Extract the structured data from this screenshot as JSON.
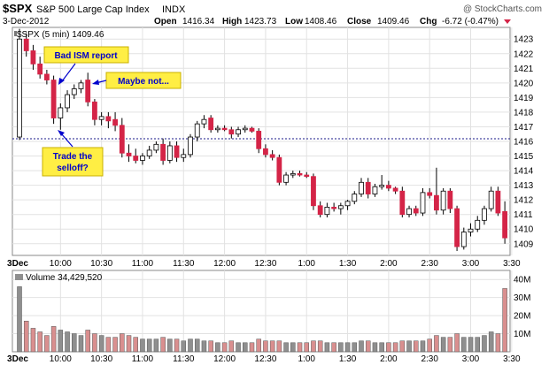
{
  "header": {
    "symbol": "$SPX",
    "name": "S&P 500 Large Cap Index",
    "exchange": "INDX",
    "date": "3-Dec-2012",
    "open_label": "Open",
    "open": "1416.34",
    "high_label": "High",
    "high": "1423.73",
    "low_label": "Low",
    "low": "1408.46",
    "close_label": "Close",
    "close": "1409.46",
    "chg_label": "Chg",
    "chg": "-6.72 (-0.47%)",
    "watermark": "@ StockCharts.com"
  },
  "price_legend": "$SPX (5 min) 1409.46",
  "volume_legend": "Volume 34,429,520",
  "colors": {
    "up": "#ffffff",
    "down": "#d42447",
    "wick": "#000000",
    "annotation_bg": "#ffee44",
    "annotation_text": "#0000cc",
    "volume_up": "#8f8f8f",
    "volume_down": "#d98f8f",
    "ref_line": "#1a1a88"
  },
  "annotations": [
    {
      "lines": [
        "Bad ISM report"
      ]
    },
    {
      "lines": [
        "Maybe not..."
      ]
    },
    {
      "lines": [
        "Trade the",
        "selloff?"
      ]
    }
  ],
  "chart_data": {
    "type": "candlestick",
    "interval": "5 min",
    "previous_close": 1416.18,
    "price_ticks": [
      1409,
      1410,
      1411,
      1412,
      1413,
      1414,
      1415,
      1416,
      1417,
      1418,
      1419,
      1420,
      1421,
      1422,
      1423
    ],
    "ylim": [
      1408.2,
      1423.8
    ],
    "time_labels": [
      "3Dec",
      "10:00",
      "10:30",
      "11:00",
      "11:30",
      "12:00",
      "12:30",
      "1:00",
      "1:30",
      "2:00",
      "2:30",
      "3:00",
      "3:30"
    ],
    "volume_ticks": [
      "10M",
      "20M",
      "30M",
      "40M"
    ],
    "volume_ylim": [
      0,
      45
    ],
    "candles": [
      {
        "o": 1416.3,
        "h": 1423.7,
        "l": 1416.1,
        "c": 1423.0
      },
      {
        "o": 1423.0,
        "h": 1423.4,
        "l": 1421.8,
        "c": 1422.2
      },
      {
        "o": 1422.2,
        "h": 1422.6,
        "l": 1420.9,
        "c": 1421.3
      },
      {
        "o": 1421.3,
        "h": 1421.8,
        "l": 1420.3,
        "c": 1420.6
      },
      {
        "o": 1420.6,
        "h": 1420.9,
        "l": 1419.9,
        "c": 1420.2
      },
      {
        "o": 1420.2,
        "h": 1420.5,
        "l": 1417.2,
        "c": 1417.6
      },
      {
        "o": 1417.6,
        "h": 1418.6,
        "l": 1416.8,
        "c": 1418.3
      },
      {
        "o": 1418.3,
        "h": 1419.5,
        "l": 1418.0,
        "c": 1419.2
      },
      {
        "o": 1419.2,
        "h": 1419.9,
        "l": 1418.9,
        "c": 1419.6
      },
      {
        "o": 1419.6,
        "h": 1420.2,
        "l": 1419.3,
        "c": 1420.0
      },
      {
        "o": 1420.2,
        "h": 1420.7,
        "l": 1418.4,
        "c": 1418.7
      },
      {
        "o": 1418.7,
        "h": 1418.9,
        "l": 1417.1,
        "c": 1417.5
      },
      {
        "o": 1417.5,
        "h": 1418.0,
        "l": 1417.1,
        "c": 1417.7
      },
      {
        "o": 1417.7,
        "h": 1418.0,
        "l": 1416.9,
        "c": 1417.4
      },
      {
        "o": 1417.5,
        "h": 1418.0,
        "l": 1416.7,
        "c": 1417.1
      },
      {
        "o": 1417.1,
        "h": 1417.6,
        "l": 1414.9,
        "c": 1415.2
      },
      {
        "o": 1415.2,
        "h": 1415.8,
        "l": 1414.6,
        "c": 1415.0
      },
      {
        "o": 1415.0,
        "h": 1415.5,
        "l": 1414.5,
        "c": 1414.7
      },
      {
        "o": 1414.7,
        "h": 1415.2,
        "l": 1414.4,
        "c": 1415.0
      },
      {
        "o": 1415.0,
        "h": 1415.7,
        "l": 1414.8,
        "c": 1415.4
      },
      {
        "o": 1415.4,
        "h": 1416.0,
        "l": 1415.2,
        "c": 1415.8
      },
      {
        "o": 1415.8,
        "h": 1416.2,
        "l": 1414.4,
        "c": 1414.7
      },
      {
        "o": 1414.7,
        "h": 1416.0,
        "l": 1414.5,
        "c": 1415.7
      },
      {
        "o": 1415.7,
        "h": 1416.0,
        "l": 1414.6,
        "c": 1414.9
      },
      {
        "o": 1414.9,
        "h": 1415.5,
        "l": 1414.6,
        "c": 1415.1
      },
      {
        "o": 1415.1,
        "h": 1416.5,
        "l": 1414.9,
        "c": 1416.3
      },
      {
        "o": 1416.3,
        "h": 1417.4,
        "l": 1416.0,
        "c": 1417.2
      },
      {
        "o": 1417.2,
        "h": 1417.8,
        "l": 1416.9,
        "c": 1417.5
      },
      {
        "o": 1417.6,
        "h": 1417.8,
        "l": 1416.6,
        "c": 1416.8
      },
      {
        "o": 1416.8,
        "h": 1417.1,
        "l": 1416.6,
        "c": 1416.9
      },
      {
        "o": 1416.9,
        "h": 1417.1,
        "l": 1416.7,
        "c": 1416.8
      },
      {
        "o": 1416.8,
        "h": 1417.0,
        "l": 1416.2,
        "c": 1416.5
      },
      {
        "o": 1416.5,
        "h": 1417.0,
        "l": 1416.3,
        "c": 1416.8
      },
      {
        "o": 1416.8,
        "h": 1417.1,
        "l": 1416.6,
        "c": 1416.9
      },
      {
        "o": 1416.9,
        "h": 1417.0,
        "l": 1416.6,
        "c": 1416.7
      },
      {
        "o": 1416.7,
        "h": 1416.9,
        "l": 1415.2,
        "c": 1415.5
      },
      {
        "o": 1415.5,
        "h": 1415.8,
        "l": 1414.9,
        "c": 1415.1
      },
      {
        "o": 1415.1,
        "h": 1415.4,
        "l": 1414.7,
        "c": 1414.9
      },
      {
        "o": 1414.9,
        "h": 1415.1,
        "l": 1413.0,
        "c": 1413.2
      },
      {
        "o": 1413.2,
        "h": 1413.9,
        "l": 1413.0,
        "c": 1413.7
      },
      {
        "o": 1413.7,
        "h": 1414.0,
        "l": 1413.5,
        "c": 1413.8
      },
      {
        "o": 1413.8,
        "h": 1414.0,
        "l": 1413.6,
        "c": 1413.7
      },
      {
        "o": 1413.7,
        "h": 1413.9,
        "l": 1413.5,
        "c": 1413.6
      },
      {
        "o": 1413.6,
        "h": 1413.8,
        "l": 1411.3,
        "c": 1411.6
      },
      {
        "o": 1411.6,
        "h": 1411.9,
        "l": 1410.8,
        "c": 1411.0
      },
      {
        "o": 1411.0,
        "h": 1411.8,
        "l": 1410.8,
        "c": 1411.5
      },
      {
        "o": 1411.5,
        "h": 1411.8,
        "l": 1411.2,
        "c": 1411.4
      },
      {
        "o": 1411.4,
        "h": 1411.8,
        "l": 1411.0,
        "c": 1411.6
      },
      {
        "o": 1411.6,
        "h": 1412.0,
        "l": 1411.3,
        "c": 1411.9
      },
      {
        "o": 1411.9,
        "h": 1412.6,
        "l": 1411.7,
        "c": 1412.4
      },
      {
        "o": 1412.4,
        "h": 1413.5,
        "l": 1412.2,
        "c": 1413.2
      },
      {
        "o": 1413.2,
        "h": 1413.5,
        "l": 1412.1,
        "c": 1412.4
      },
      {
        "o": 1412.4,
        "h": 1413.1,
        "l": 1412.2,
        "c": 1412.9
      },
      {
        "o": 1412.9,
        "h": 1413.7,
        "l": 1412.7,
        "c": 1413.0
      },
      {
        "o": 1413.0,
        "h": 1413.3,
        "l": 1412.6,
        "c": 1412.8
      },
      {
        "o": 1412.8,
        "h": 1412.9,
        "l": 1412.4,
        "c": 1412.6
      },
      {
        "o": 1412.6,
        "h": 1412.9,
        "l": 1410.8,
        "c": 1411.0
      },
      {
        "o": 1411.0,
        "h": 1411.6,
        "l": 1410.8,
        "c": 1411.4
      },
      {
        "o": 1411.4,
        "h": 1411.6,
        "l": 1410.9,
        "c": 1411.1
      },
      {
        "o": 1411.1,
        "h": 1412.8,
        "l": 1410.9,
        "c": 1412.5
      },
      {
        "o": 1412.5,
        "h": 1412.8,
        "l": 1412.1,
        "c": 1412.3
      },
      {
        "o": 1412.3,
        "h": 1414.2,
        "l": 1411.0,
        "c": 1411.3
      },
      {
        "o": 1411.3,
        "h": 1412.8,
        "l": 1411.0,
        "c": 1412.6
      },
      {
        "o": 1412.6,
        "h": 1412.8,
        "l": 1411.1,
        "c": 1411.4
      },
      {
        "o": 1411.4,
        "h": 1411.6,
        "l": 1408.5,
        "c": 1408.8
      },
      {
        "o": 1408.8,
        "h": 1410.1,
        "l": 1408.6,
        "c": 1409.8
      },
      {
        "o": 1409.8,
        "h": 1410.4,
        "l": 1409.5,
        "c": 1410.0
      },
      {
        "o": 1410.0,
        "h": 1410.9,
        "l": 1409.8,
        "c": 1410.6
      },
      {
        "o": 1410.6,
        "h": 1411.6,
        "l": 1410.3,
        "c": 1411.4
      },
      {
        "o": 1411.4,
        "h": 1412.9,
        "l": 1411.2,
        "c": 1412.6
      },
      {
        "o": 1412.6,
        "h": 1412.9,
        "l": 1410.9,
        "c": 1411.1
      },
      {
        "o": 1411.2,
        "h": 1411.9,
        "l": 1409.0,
        "c": 1409.4
      }
    ],
    "volume": [
      36,
      17,
      13,
      11,
      9,
      14,
      12,
      11,
      10,
      9,
      12,
      10,
      9,
      8,
      8,
      10,
      9,
      8,
      7,
      7,
      7,
      8,
      7,
      7,
      6,
      7,
      7,
      6,
      6,
      5,
      5,
      6,
      5,
      5,
      5,
      7,
      6,
      6,
      6,
      5,
      5,
      5,
      5,
      6,
      6,
      5,
      5,
      5,
      5,
      5,
      6,
      6,
      5,
      5,
      5,
      5,
      6,
      6,
      6,
      6,
      7,
      9,
      8,
      8,
      10,
      8,
      8,
      8,
      9,
      11,
      10,
      35
    ]
  }
}
